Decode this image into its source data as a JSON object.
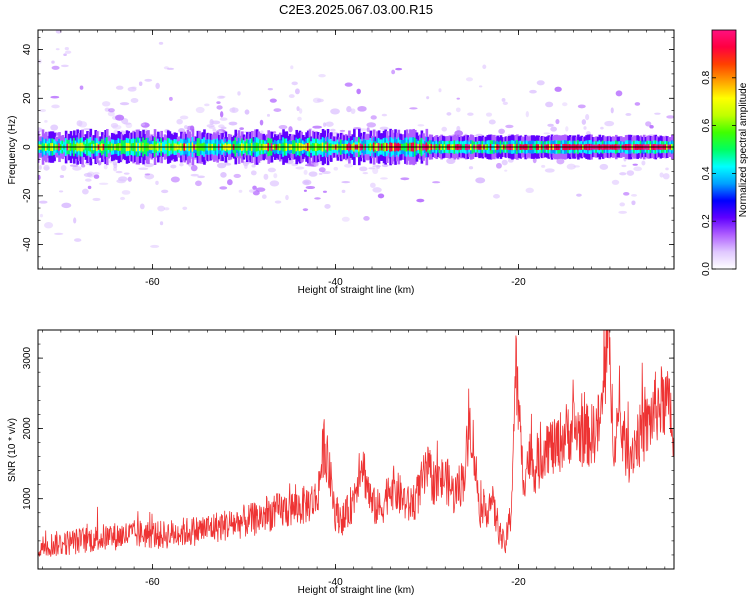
{
  "title": "C2E3.2025.067.03.00.R15",
  "chart_data": [
    {
      "type": "heatmap",
      "xlabel": "Height of straight line (km)",
      "ylabel": "Frequency (Hz)",
      "xlim": [
        -72.5,
        -3
      ],
      "ylim": [
        -50,
        48
      ],
      "xticks": [
        -60,
        -40,
        -20
      ],
      "xtick_labels": [
        "-60",
        "-40",
        "-20"
      ],
      "yticks": [
        -40,
        -20,
        0,
        20,
        40
      ],
      "ytick_labels": [
        "-40",
        "-20",
        "0",
        "20",
        "40"
      ],
      "colorbar": {
        "label": "Normalized spectral amplitude",
        "range": [
          0,
          1
        ],
        "ticks": [
          0,
          0.2,
          0.4,
          0.6,
          0.8
        ],
        "tick_labels": [
          "0.0",
          "0.2",
          "0.4",
          "0.6",
          "0.8"
        ],
        "colors": [
          "#ffffff",
          "#e0c8ff",
          "#b060ff",
          "#6000ff",
          "#0000ff",
          "#00a0ff",
          "#00ffff",
          "#00ff60",
          "#40ff00",
          "#c0ff00",
          "#ffff00",
          "#ffa000",
          "#ff4000",
          "#ff0040",
          "#ff1080"
        ]
      },
      "band_center_hz": 0,
      "band_halfwidth_hz": 4,
      "red_fraction_by_height": [
        [
          -72,
          0.05
        ],
        [
          -60,
          0.08
        ],
        [
          -50,
          0.1
        ],
        [
          -40,
          0.15
        ],
        [
          -34,
          0.55
        ],
        [
          -28,
          0.6
        ],
        [
          -20,
          0.45
        ],
        [
          -17,
          0.85
        ],
        [
          -3,
          0.9
        ]
      ],
      "grid": false
    },
    {
      "type": "line",
      "xlabel": "Height of straight line (km)",
      "ylabel": "SNR (10 * v/v)",
      "xlim": [
        -72.5,
        -3
      ],
      "ylim": [
        0,
        3400
      ],
      "xticks": [
        -60,
        -40,
        -20
      ],
      "xtick_labels": [
        "-60",
        "-40",
        "-20"
      ],
      "yticks": [
        1000,
        2000,
        3000
      ],
      "ytick_labels": [
        "1000",
        "2000",
        "3000"
      ],
      "line_color": "#ee3333",
      "series": [
        {
          "x": [
            -72.5,
            -71,
            -69,
            -67,
            -65,
            -63,
            -61,
            -59,
            -57,
            -55,
            -53,
            -51,
            -49,
            -47,
            -45,
            -43.5,
            -42,
            -41.2,
            -40,
            -39,
            -38,
            -37.2,
            -36,
            -35,
            -34,
            -33,
            -32,
            -31.2,
            -30,
            -29,
            -28,
            -27,
            -26,
            -25.2,
            -24.5,
            -24,
            -23,
            -22,
            -21.5,
            -20.8,
            -20.3,
            -19.5,
            -18.8,
            -18,
            -17,
            -16,
            -15,
            -14,
            -13,
            -12,
            -11,
            -10.2,
            -9.6,
            -9,
            -8,
            -7,
            -6,
            -5,
            -4,
            -3.3,
            -3
          ],
          "y": [
            300,
            350,
            380,
            420,
            450,
            480,
            500,
            480,
            520,
            550,
            600,
            650,
            700,
            800,
            850,
            900,
            1000,
            1800,
            800,
            700,
            1000,
            1600,
            900,
            850,
            1200,
            1050,
            900,
            1000,
            1400,
            1200,
            1300,
            1050,
            1300,
            2100,
            1200,
            700,
            1000,
            500,
            300,
            800,
            2900,
            1300,
            1600,
            1400,
            1800,
            1700,
            1900,
            2000,
            1900,
            1900,
            2100,
            3300,
            1900,
            2100,
            1600,
            1850,
            2000,
            2300,
            2400,
            2200,
            1500
          ]
        }
      ],
      "grid": false
    }
  ]
}
